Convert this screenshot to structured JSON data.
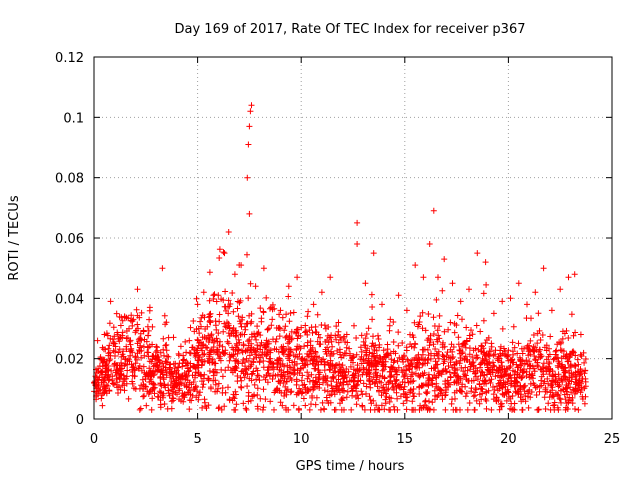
{
  "chart_data": {
    "type": "scatter",
    "title": "Day 169 of 2017, Rate Of TEC Index for receiver p367",
    "xlabel": "GPS time / hours",
    "ylabel": "ROTI / TECUs",
    "xlim": [
      0,
      25
    ],
    "ylim": [
      0,
      0.12
    ],
    "x_ticks": [
      0,
      5,
      10,
      15,
      20,
      25
    ],
    "x_tick_labels": [
      "0",
      "5",
      "10",
      "15",
      "20",
      "25"
    ],
    "y_ticks": [
      0,
      0.02,
      0.04,
      0.06,
      0.08,
      0.1,
      0.12
    ],
    "y_tick_labels": [
      "0",
      "0.02",
      "0.04",
      "0.06",
      "0.08",
      "0.1",
      "0.12"
    ],
    "grid": true,
    "marker": "+",
    "marker_color": "#ff0000",
    "series": [
      {
        "name": "ROTI",
        "points": [
          [
            0.1,
            0.011
          ],
          [
            0.3,
            0.02
          ],
          [
            0.5,
            0.028
          ],
          [
            0.8,
            0.039
          ],
          [
            1.0,
            0.025
          ],
          [
            1.3,
            0.031
          ],
          [
            1.6,
            0.018
          ],
          [
            1.9,
            0.033
          ],
          [
            2.1,
            0.043
          ],
          [
            2.4,
            0.029
          ],
          [
            2.7,
            0.037
          ],
          [
            3.0,
            0.024
          ],
          [
            3.3,
            0.05
          ],
          [
            3.6,
            0.027
          ],
          [
            4.0,
            0.016
          ],
          [
            4.3,
            0.021
          ],
          [
            4.6,
            0.026
          ],
          [
            5.0,
            0.038
          ],
          [
            5.3,
            0.042
          ],
          [
            5.6,
            0.034
          ],
          [
            6.0,
            0.041
          ],
          [
            6.3,
            0.055
          ],
          [
            6.5,
            0.062
          ],
          [
            6.8,
            0.048
          ],
          [
            7.1,
            0.051
          ],
          [
            7.4,
            0.08
          ],
          [
            7.45,
            0.091
          ],
          [
            7.5,
            0.097
          ],
          [
            7.55,
            0.102
          ],
          [
            7.6,
            0.104
          ],
          [
            7.5,
            0.068
          ],
          [
            7.8,
            0.044
          ],
          [
            8.2,
            0.05
          ],
          [
            8.6,
            0.033
          ],
          [
            9.0,
            0.036
          ],
          [
            9.4,
            0.044
          ],
          [
            9.8,
            0.047
          ],
          [
            10.2,
            0.031
          ],
          [
            10.6,
            0.038
          ],
          [
            11.0,
            0.042
          ],
          [
            11.4,
            0.047
          ],
          [
            11.8,
            0.032
          ],
          [
            12.2,
            0.028
          ],
          [
            12.7,
            0.065
          ],
          [
            12.7,
            0.058
          ],
          [
            13.1,
            0.045
          ],
          [
            13.5,
            0.055
          ],
          [
            13.9,
            0.038
          ],
          [
            14.3,
            0.033
          ],
          [
            14.7,
            0.041
          ],
          [
            15.1,
            0.036
          ],
          [
            15.5,
            0.051
          ],
          [
            15.9,
            0.047
          ],
          [
            16.2,
            0.058
          ],
          [
            16.4,
            0.069
          ],
          [
            16.6,
            0.047
          ],
          [
            16.9,
            0.053
          ],
          [
            17.3,
            0.045
          ],
          [
            17.7,
            0.039
          ],
          [
            18.1,
            0.043
          ],
          [
            18.5,
            0.055
          ],
          [
            18.9,
            0.052
          ],
          [
            19.3,
            0.035
          ],
          [
            19.7,
            0.039
          ],
          [
            20.1,
            0.04
          ],
          [
            20.5,
            0.045
          ],
          [
            20.9,
            0.038
          ],
          [
            21.3,
            0.042
          ],
          [
            21.7,
            0.05
          ],
          [
            22.1,
            0.036
          ],
          [
            22.5,
            0.043
          ],
          [
            22.9,
            0.047
          ],
          [
            23.2,
            0.048
          ],
          [
            23.5,
            0.028
          ],
          [
            23.7,
            0.016
          ]
        ]
      }
    ],
    "envelope": {
      "hours": [
        0,
        0.5,
        1,
        1.5,
        2,
        2.5,
        3,
        3.5,
        4,
        4.5,
        5,
        5.5,
        6,
        6.5,
        7,
        7.5,
        8,
        8.5,
        9,
        9.5,
        10,
        10.5,
        11,
        11.5,
        12,
        12.5,
        13,
        13.5,
        14,
        14.5,
        15,
        15.5,
        16,
        16.5,
        17,
        17.5,
        18,
        18.5,
        19,
        19.5,
        20,
        20.5,
        21,
        21.5,
        22,
        22.5,
        23,
        23.5
      ],
      "median": [
        0.012,
        0.016,
        0.018,
        0.02,
        0.019,
        0.017,
        0.016,
        0.015,
        0.012,
        0.014,
        0.02,
        0.022,
        0.021,
        0.022,
        0.021,
        0.02,
        0.019,
        0.018,
        0.018,
        0.019,
        0.017,
        0.017,
        0.017,
        0.016,
        0.015,
        0.015,
        0.015,
        0.016,
        0.015,
        0.015,
        0.014,
        0.015,
        0.017,
        0.018,
        0.017,
        0.016,
        0.016,
        0.016,
        0.015,
        0.015,
        0.014,
        0.015,
        0.015,
        0.015,
        0.014,
        0.014,
        0.013,
        0.012
      ],
      "spread": [
        0.008,
        0.012,
        0.015,
        0.016,
        0.018,
        0.016,
        0.013,
        0.013,
        0.007,
        0.01,
        0.017,
        0.02,
        0.021,
        0.024,
        0.021,
        0.02,
        0.017,
        0.016,
        0.016,
        0.017,
        0.016,
        0.016,
        0.017,
        0.015,
        0.012,
        0.012,
        0.013,
        0.014,
        0.013,
        0.014,
        0.012,
        0.014,
        0.017,
        0.019,
        0.017,
        0.016,
        0.015,
        0.015,
        0.014,
        0.013,
        0.013,
        0.014,
        0.014,
        0.014,
        0.014,
        0.014,
        0.015,
        0.01
      ],
      "floor": 0.003,
      "end_hour": 23.75
    }
  }
}
